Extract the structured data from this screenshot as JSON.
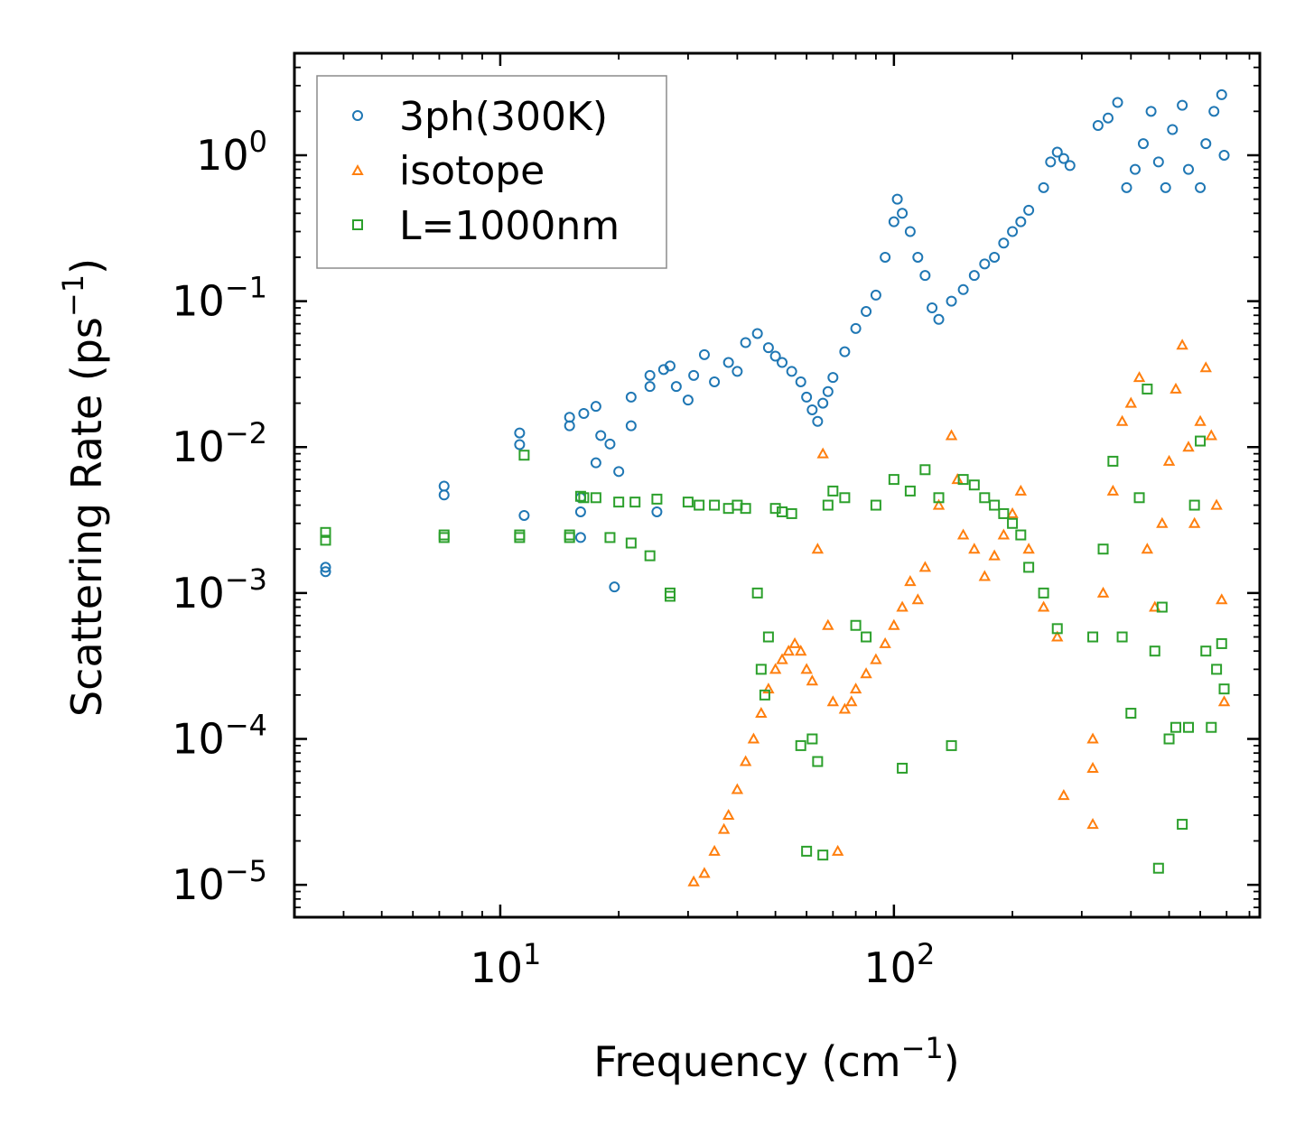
{
  "chart_data": {
    "type": "scatter",
    "title": "",
    "xlabel": "Frequency (cm",
    "xlabel_sup": "−1",
    "xlabel_tail": ")",
    "ylabel": "Scattering Rate (ps",
    "ylabel_sup": "−1",
    "ylabel_tail": ")",
    "xscale": "log",
    "yscale": "log",
    "xlim": [
      3,
      850
    ],
    "ylim": [
      6e-06,
      5
    ],
    "grid": false,
    "legend_position": "top-left",
    "x_ticks": [
      {
        "value": 10,
        "base": "10",
        "exp": "1"
      },
      {
        "value": 100,
        "base": "10",
        "exp": "2"
      }
    ],
    "y_ticks": [
      {
        "value": 1,
        "base": "10",
        "exp": "0"
      },
      {
        "value": 0.1,
        "base": "10",
        "exp": "−1"
      },
      {
        "value": 0.01,
        "base": "10",
        "exp": "−2"
      },
      {
        "value": 0.001,
        "base": "10",
        "exp": "−3"
      },
      {
        "value": 0.0001,
        "base": "10",
        "exp": "−4"
      },
      {
        "value": 1e-05,
        "base": "10",
        "exp": "−5"
      }
    ],
    "series": [
      {
        "name": "3ph(300K)",
        "color": "#1f77b4",
        "marker": "circle",
        "points": [
          [
            3.6,
            0.0015
          ],
          [
            3.6,
            0.0014
          ],
          [
            7.2,
            0.0054
          ],
          [
            7.2,
            0.0047
          ],
          [
            11.2,
            0.0125
          ],
          [
            11.2,
            0.0104
          ],
          [
            11.5,
            0.0034
          ],
          [
            15,
            0.016
          ],
          [
            15,
            0.014
          ],
          [
            16,
            0.0045
          ],
          [
            16,
            0.0036
          ],
          [
            16,
            0.0024
          ],
          [
            16.3,
            0.017
          ],
          [
            17.5,
            0.019
          ],
          [
            17.5,
            0.0078
          ],
          [
            18,
            0.012
          ],
          [
            19,
            0.0105
          ],
          [
            19.5,
            0.0011
          ],
          [
            20,
            0.0068
          ],
          [
            21.5,
            0.022
          ],
          [
            21.5,
            0.014
          ],
          [
            24,
            0.031
          ],
          [
            24,
            0.026
          ],
          [
            25,
            0.0036
          ],
          [
            26,
            0.034
          ],
          [
            27,
            0.036
          ],
          [
            28,
            0.026
          ],
          [
            30,
            0.021
          ],
          [
            31,
            0.031
          ],
          [
            33,
            0.043
          ],
          [
            35,
            0.028
          ],
          [
            38,
            0.038
          ],
          [
            40,
            0.033
          ],
          [
            42,
            0.052
          ],
          [
            45,
            0.06
          ],
          [
            48,
            0.048
          ],
          [
            50,
            0.042
          ],
          [
            52,
            0.038
          ],
          [
            55,
            0.033
          ],
          [
            58,
            0.028
          ],
          [
            60,
            0.022
          ],
          [
            62,
            0.018
          ],
          [
            64,
            0.015
          ],
          [
            66,
            0.02
          ],
          [
            68,
            0.024
          ],
          [
            70,
            0.03
          ],
          [
            75,
            0.045
          ],
          [
            80,
            0.065
          ],
          [
            85,
            0.085
          ],
          [
            90,
            0.11
          ],
          [
            95,
            0.2
          ],
          [
            100,
            0.35
          ],
          [
            102,
            0.5
          ],
          [
            105,
            0.4
          ],
          [
            110,
            0.3
          ],
          [
            115,
            0.2
          ],
          [
            120,
            0.15
          ],
          [
            125,
            0.09
          ],
          [
            130,
            0.075
          ],
          [
            140,
            0.1
          ],
          [
            150,
            0.12
          ],
          [
            160,
            0.15
          ],
          [
            170,
            0.18
          ],
          [
            180,
            0.2
          ],
          [
            190,
            0.25
          ],
          [
            200,
            0.3
          ],
          [
            210,
            0.35
          ],
          [
            220,
            0.42
          ],
          [
            240,
            0.6
          ],
          [
            250,
            0.9
          ],
          [
            260,
            1.05
          ],
          [
            270,
            0.95
          ],
          [
            280,
            0.85
          ],
          [
            330,
            1.6
          ],
          [
            350,
            1.8
          ],
          [
            370,
            2.3
          ],
          [
            390,
            0.6
          ],
          [
            410,
            0.8
          ],
          [
            430,
            1.2
          ],
          [
            450,
            2.0
          ],
          [
            470,
            0.9
          ],
          [
            490,
            0.6
          ],
          [
            510,
            1.5
          ],
          [
            540,
            2.2
          ],
          [
            560,
            0.8
          ],
          [
            600,
            0.6
          ],
          [
            620,
            1.2
          ],
          [
            650,
            2.0
          ],
          [
            680,
            2.6
          ],
          [
            690,
            1.0
          ]
        ]
      },
      {
        "name": "isotope",
        "color": "#ff7f0e",
        "marker": "triangle",
        "points": [
          [
            31,
            1.05e-05
          ],
          [
            33,
            1.2e-05
          ],
          [
            35,
            1.7e-05
          ],
          [
            37,
            2.4e-05
          ],
          [
            38,
            3e-05
          ],
          [
            40,
            4.5e-05
          ],
          [
            42,
            7e-05
          ],
          [
            44,
            0.0001
          ],
          [
            46,
            0.00015
          ],
          [
            48,
            0.00022
          ],
          [
            50,
            0.0003
          ],
          [
            52,
            0.00035
          ],
          [
            54,
            0.0004
          ],
          [
            56,
            0.00045
          ],
          [
            58,
            0.0004
          ],
          [
            60,
            0.0003
          ],
          [
            62,
            0.00025
          ],
          [
            64,
            0.002
          ],
          [
            66,
            0.009
          ],
          [
            68,
            0.0006
          ],
          [
            70,
            0.00018
          ],
          [
            72,
            1.7e-05
          ],
          [
            75,
            0.00016
          ],
          [
            78,
            0.00018
          ],
          [
            80,
            0.00022
          ],
          [
            85,
            0.00028
          ],
          [
            90,
            0.00035
          ],
          [
            95,
            0.00045
          ],
          [
            100,
            0.0006
          ],
          [
            105,
            0.0008
          ],
          [
            110,
            0.0012
          ],
          [
            115,
            0.0009
          ],
          [
            120,
            0.0015
          ],
          [
            130,
            0.004
          ],
          [
            140,
            0.012
          ],
          [
            145,
            0.006
          ],
          [
            150,
            0.0025
          ],
          [
            160,
            0.002
          ],
          [
            170,
            0.0013
          ],
          [
            180,
            0.0018
          ],
          [
            190,
            0.0025
          ],
          [
            200,
            0.0035
          ],
          [
            210,
            0.005
          ],
          [
            220,
            0.002
          ],
          [
            240,
            0.0008
          ],
          [
            260,
            0.0005
          ],
          [
            270,
            4.1e-05
          ],
          [
            320,
            2.6e-05
          ],
          [
            320,
            6.3e-05
          ],
          [
            320,
            0.0001
          ],
          [
            340,
            0.001
          ],
          [
            360,
            0.005
          ],
          [
            380,
            0.015
          ],
          [
            400,
            0.02
          ],
          [
            420,
            0.03
          ],
          [
            440,
            0.002
          ],
          [
            460,
            0.0008
          ],
          [
            480,
            0.003
          ],
          [
            500,
            0.008
          ],
          [
            520,
            0.025
          ],
          [
            540,
            0.05
          ],
          [
            560,
            0.01
          ],
          [
            580,
            0.003
          ],
          [
            600,
            0.015
          ],
          [
            620,
            0.035
          ],
          [
            640,
            0.012
          ],
          [
            660,
            0.004
          ],
          [
            680,
            0.0009
          ],
          [
            690,
            0.00018
          ]
        ]
      },
      {
        "name": "L=1000nm",
        "color": "#2ca02c",
        "marker": "square",
        "points": [
          [
            3.6,
            0.0026
          ],
          [
            3.6,
            0.0023
          ],
          [
            7.2,
            0.0025
          ],
          [
            7.2,
            0.0024
          ],
          [
            11.2,
            0.0025
          ],
          [
            11.2,
            0.0024
          ],
          [
            11.5,
            0.0088
          ],
          [
            15,
            0.0025
          ],
          [
            15,
            0.0024
          ],
          [
            16,
            0.0046
          ],
          [
            16.3,
            0.0045
          ],
          [
            17.5,
            0.0045
          ],
          [
            19,
            0.0024
          ],
          [
            20,
            0.0042
          ],
          [
            21.5,
            0.0022
          ],
          [
            22,
            0.0042
          ],
          [
            24,
            0.0018
          ],
          [
            25,
            0.0044
          ],
          [
            27,
            0.001
          ],
          [
            27,
            0.00095
          ],
          [
            30,
            0.0042
          ],
          [
            32,
            0.004
          ],
          [
            35,
            0.004
          ],
          [
            38,
            0.0038
          ],
          [
            40,
            0.004
          ],
          [
            42,
            0.0038
          ],
          [
            45,
            0.001
          ],
          [
            46,
            0.0003
          ],
          [
            47,
            0.0002
          ],
          [
            48,
            0.0005
          ],
          [
            50,
            0.0038
          ],
          [
            52,
            0.0036
          ],
          [
            55,
            0.0035
          ],
          [
            58,
            9e-05
          ],
          [
            60,
            1.7e-05
          ],
          [
            62,
            0.0001
          ],
          [
            64,
            7e-05
          ],
          [
            66,
            1.6e-05
          ],
          [
            68,
            0.004
          ],
          [
            70,
            0.005
          ],
          [
            75,
            0.0045
          ],
          [
            80,
            0.0006
          ],
          [
            85,
            0.0005
          ],
          [
            90,
            0.004
          ],
          [
            100,
            0.006
          ],
          [
            105,
            6.3e-05
          ],
          [
            110,
            0.005
          ],
          [
            120,
            0.007
          ],
          [
            130,
            0.0045
          ],
          [
            140,
            9e-05
          ],
          [
            150,
            0.006
          ],
          [
            160,
            0.0055
          ],
          [
            170,
            0.0045
          ],
          [
            180,
            0.004
          ],
          [
            190,
            0.0035
          ],
          [
            200,
            0.003
          ],
          [
            210,
            0.0025
          ],
          [
            220,
            0.0015
          ],
          [
            240,
            0.001
          ],
          [
            260,
            0.00057
          ],
          [
            320,
            0.0005
          ],
          [
            340,
            0.002
          ],
          [
            360,
            0.008
          ],
          [
            380,
            0.0005
          ],
          [
            400,
            0.00015
          ],
          [
            420,
            0.0045
          ],
          [
            440,
            0.025
          ],
          [
            460,
            0.0004
          ],
          [
            470,
            1.3e-05
          ],
          [
            480,
            0.0008
          ],
          [
            500,
            0.0001
          ],
          [
            520,
            0.00012
          ],
          [
            540,
            2.6e-05
          ],
          [
            560,
            0.00012
          ],
          [
            580,
            0.004
          ],
          [
            600,
            0.011
          ],
          [
            620,
            0.0004
          ],
          [
            640,
            0.00012
          ],
          [
            660,
            0.0003
          ],
          [
            680,
            0.00045
          ],
          [
            690,
            0.00022
          ]
        ]
      }
    ]
  }
}
